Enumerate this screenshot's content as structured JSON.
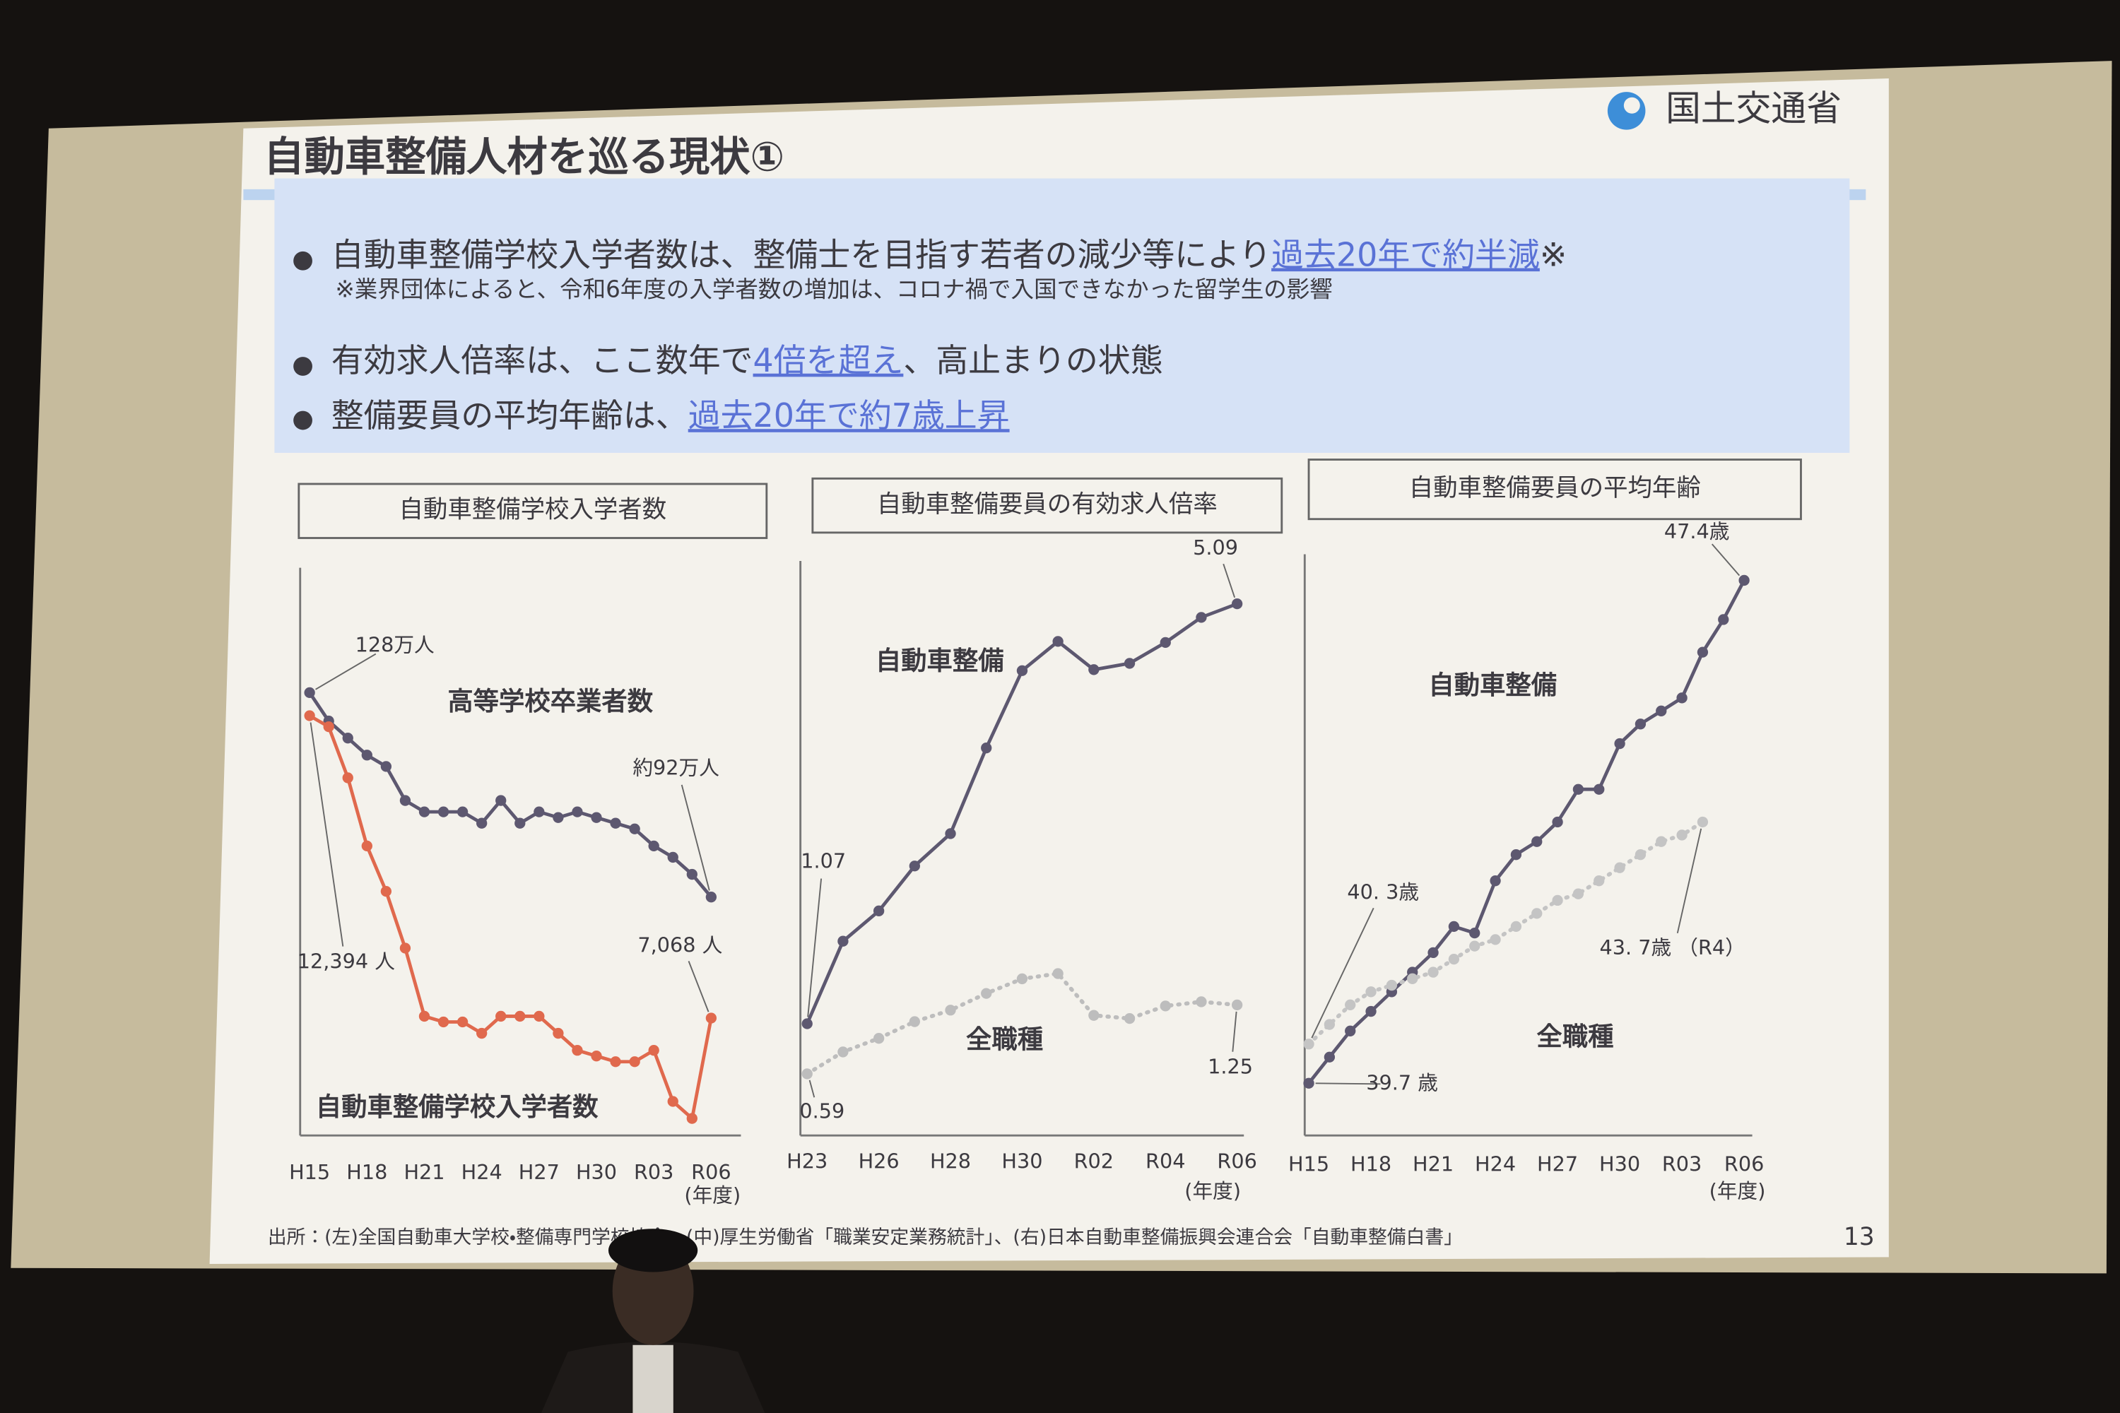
{
  "slide": {
    "title": "自動車整備人材を巡る現状①",
    "logo": "国土交通省",
    "bullets": [
      {
        "parts": [
          "自動車整備学校入学者数は、整備士を目指す若者の減少等により",
          "過去20年で約半減",
          "※"
        ],
        "note": "※業界団体によると、令和6年度の入学者数の増加は、コロナ禍で入国できなかった留学生の影響"
      },
      {
        "parts": [
          "有効求人倍率は、ここ数年で",
          "4倍を超え",
          "、高止まりの状態"
        ]
      },
      {
        "parts": [
          "整備要員の平均年齢は、",
          "過去20年で約7歳上昇"
        ]
      }
    ],
    "source": "出所：(左)全国自動車大学校・整備専門学校協会、(中)厚生労働省「職業安定業務統計」、(右)日本自動車整備振興会連合会「自動車整備白書」",
    "page": 13
  },
  "chart_data": [
    {
      "type": "line",
      "title": "自動車整備学校入学者数",
      "xlabel": "(年度)",
      "categories": [
        "H15",
        null,
        null,
        "H18",
        null,
        null,
        "H21",
        null,
        null,
        "H24",
        null,
        null,
        "H27",
        null,
        null,
        "H30",
        null,
        null,
        "R03",
        null,
        null,
        "R06"
      ],
      "ylim": [
        50,
        150
      ],
      "y2lim": [
        5000,
        15000
      ],
      "series": [
        {
          "name": "高等学校卒業者数",
          "color": "#5d5870",
          "dash": false,
          "values": [
            128,
            123,
            120,
            117,
            115,
            109,
            107,
            107,
            107,
            105,
            109,
            105,
            107,
            106,
            107,
            106,
            105,
            104,
            101,
            99,
            96,
            92
          ],
          "value_labels": [
            "128万人",
            null,
            null,
            null,
            null,
            null,
            null,
            null,
            null,
            null,
            null,
            null,
            null,
            null,
            null,
            null,
            null,
            null,
            null,
            null,
            null,
            "約92万人"
          ]
        },
        {
          "name": "自動車整備学校入学者数",
          "color": "#e0694d",
          "dash": false,
          "axis": "y2",
          "values": [
            12394,
            12200,
            11300,
            10100,
            9300,
            8300,
            7100,
            7000,
            7000,
            6800,
            7100,
            7100,
            7100,
            6800,
            6500,
            6400,
            6300,
            6300,
            6500,
            5600,
            5300,
            7068
          ],
          "value_labels": [
            "12,394 人",
            null,
            null,
            null,
            null,
            null,
            null,
            null,
            null,
            null,
            null,
            null,
            null,
            null,
            null,
            null,
            null,
            null,
            null,
            null,
            null,
            "7,068 人"
          ]
        }
      ]
    },
    {
      "type": "line",
      "title": "自動車整備要員の有効求人倍率",
      "xlabel": "(年度)",
      "categories": [
        "H23",
        null,
        "H26",
        null,
        "H28",
        null,
        "H30",
        null,
        "R02",
        null,
        "R04",
        null,
        "R06"
      ],
      "ylim": [
        0,
        5.5
      ],
      "series": [
        {
          "name": "自動車整備",
          "color": "#5d5870",
          "dash": false,
          "values": [
            1.07,
            1.86,
            2.15,
            2.58,
            2.89,
            3.71,
            4.45,
            4.73,
            4.46,
            4.52,
            4.72,
            4.96,
            5.09
          ]
        },
        {
          "name": "全職種",
          "color": "#bdbdbd",
          "dash": true,
          "values": [
            0.59,
            0.8,
            0.93,
            1.09,
            1.2,
            1.36,
            1.5,
            1.55,
            1.15,
            1.12,
            1.24,
            1.28,
            1.25
          ]
        }
      ]
    },
    {
      "type": "line",
      "title": "自動車整備要員の平均年齢",
      "xlabel": "(年度)",
      "categories": [
        "H15",
        null,
        null,
        "H18",
        null,
        null,
        "H21",
        null,
        null,
        "H24",
        null,
        null,
        "H27",
        null,
        null,
        "H30",
        null,
        null,
        "R03",
        null,
        null,
        "R06"
      ],
      "ylim": [
        38.9,
        47.8
      ],
      "series": [
        {
          "name": "自動車整備",
          "color": "#5d5870",
          "dash": false,
          "values": [
            39.7,
            40.1,
            40.5,
            40.8,
            41.1,
            41.4,
            41.7,
            42.1,
            42.0,
            42.8,
            43.2,
            43.4,
            43.7,
            44.2,
            44.2,
            44.9,
            45.2,
            45.4,
            45.6,
            46.3,
            46.8,
            47.4
          ],
          "value_labels": [
            "39.7 歳",
            null,
            null,
            null,
            null,
            null,
            null,
            null,
            null,
            null,
            null,
            null,
            null,
            null,
            null,
            null,
            null,
            null,
            null,
            null,
            null,
            "47.4歳"
          ]
        },
        {
          "name": "全職種",
          "color": "#c4c4c4",
          "dash": true,
          "values": [
            40.3,
            40.6,
            40.9,
            41.1,
            41.2,
            41.3,
            41.4,
            41.6,
            41.8,
            41.9,
            42.1,
            42.3,
            42.5,
            42.6,
            42.8,
            43.0,
            43.2,
            43.4,
            43.5,
            43.7,
            null,
            null
          ],
          "value_labels": [
            "40. 3歳",
            null,
            null,
            null,
            null,
            null,
            null,
            null,
            null,
            null,
            null,
            null,
            null,
            null,
            null,
            null,
            null,
            null,
            null,
            "43. 7歳 （R4）",
            null,
            null
          ]
        }
      ]
    }
  ]
}
